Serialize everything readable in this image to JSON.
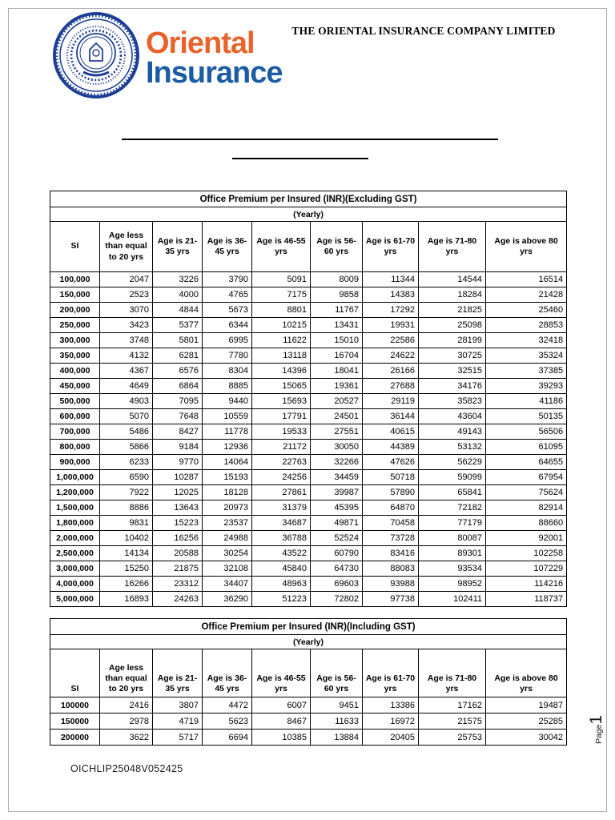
{
  "header": {
    "company_title": "THE ORIENTAL INSURANCE COMPANY LIMITED",
    "logo": {
      "line1": "Oriental",
      "line2": "Insurance",
      "orange": "#e8622a",
      "blue": "#1c5ca3",
      "emblem_blue": "#1e3f96",
      "emblem_name": "oriental-insurance-seal"
    }
  },
  "tables": [
    {
      "title": "Office Premium per Insured (INR)(Excluding GST)",
      "subtitle": "(Yearly)",
      "columns": [
        "SI",
        "Age less than equal to 20 yrs",
        "Age is 21-35 yrs",
        "Age is 36-45 yrs",
        "Age is 46-55 yrs",
        "Age is 56-60 yrs",
        "Age is 61-70 yrs",
        "Age is 71-80 yrs",
        "Age is above 80 yrs"
      ],
      "rows": [
        [
          "100,000",
          "2047",
          "3226",
          "3790",
          "5091",
          "8009",
          "11344",
          "14544",
          "16514"
        ],
        [
          "150,000",
          "2523",
          "4000",
          "4765",
          "7175",
          "9858",
          "14383",
          "18284",
          "21428"
        ],
        [
          "200,000",
          "3070",
          "4844",
          "5673",
          "8801",
          "11767",
          "17292",
          "21825",
          "25460"
        ],
        [
          "250,000",
          "3423",
          "5377",
          "6344",
          "10215",
          "13431",
          "19931",
          "25098",
          "28853"
        ],
        [
          "300,000",
          "3748",
          "5801",
          "6995",
          "11622",
          "15010",
          "22586",
          "28199",
          "32418"
        ],
        [
          "350,000",
          "4132",
          "6281",
          "7780",
          "13118",
          "16704",
          "24622",
          "30725",
          "35324"
        ],
        [
          "400,000",
          "4367",
          "6576",
          "8304",
          "14396",
          "18041",
          "26166",
          "32515",
          "37385"
        ],
        [
          "450,000",
          "4649",
          "6864",
          "8885",
          "15065",
          "19361",
          "27688",
          "34176",
          "39293"
        ],
        [
          "500,000",
          "4903",
          "7095",
          "9440",
          "15693",
          "20527",
          "29119",
          "35823",
          "41186"
        ],
        [
          "600,000",
          "5070",
          "7648",
          "10559",
          "17791",
          "24501",
          "36144",
          "43604",
          "50135"
        ],
        [
          "700,000",
          "5486",
          "8427",
          "11778",
          "19533",
          "27551",
          "40615",
          "49143",
          "56506"
        ],
        [
          "800,000",
          "5866",
          "9184",
          "12936",
          "21172",
          "30050",
          "44389",
          "53132",
          "61095"
        ],
        [
          "900,000",
          "6233",
          "9770",
          "14064",
          "22763",
          "32266",
          "47626",
          "56229",
          "64655"
        ],
        [
          "1,000,000",
          "6590",
          "10287",
          "15193",
          "24256",
          "34459",
          "50718",
          "59099",
          "67954"
        ],
        [
          "1,200,000",
          "7922",
          "12025",
          "18128",
          "27861",
          "39987",
          "57890",
          "65841",
          "75624"
        ],
        [
          "1,500,000",
          "8886",
          "13643",
          "20973",
          "31379",
          "45395",
          "64870",
          "72182",
          "82914"
        ],
        [
          "1,800,000",
          "9831",
          "15223",
          "23537",
          "34687",
          "49871",
          "70458",
          "77179",
          "88660"
        ],
        [
          "2,000,000",
          "10402",
          "16256",
          "24988",
          "36788",
          "52524",
          "73728",
          "80087",
          "92001"
        ],
        [
          "2,500,000",
          "14134",
          "20588",
          "30254",
          "43522",
          "60790",
          "83416",
          "89301",
          "102258"
        ],
        [
          "3,000,000",
          "15250",
          "21875",
          "32108",
          "45840",
          "64730",
          "88083",
          "93534",
          "107229"
        ],
        [
          "4,000,000",
          "16266",
          "23312",
          "34407",
          "48963",
          "69603",
          "93988",
          "98952",
          "114216"
        ],
        [
          "5,000,000",
          "16893",
          "24263",
          "36290",
          "51223",
          "72802",
          "97738",
          "102411",
          "118737"
        ]
      ]
    },
    {
      "title": "Office Premium per Insured (INR)(Including GST)",
      "subtitle": "(Yearly)",
      "columns": [
        "SI",
        "Age less than equal to 20 yrs",
        "Age is 21-35 yrs",
        "Age is 36-45 yrs",
        "Age is 46-55 yrs",
        "Age is 56-60 yrs",
        "Age is 61-70 yrs",
        "Age is 71-80 yrs",
        "Age is above 80 yrs"
      ],
      "rows": [
        [
          "100000",
          "2416",
          "3807",
          "4472",
          "6007",
          "9451",
          "13386",
          "17162",
          "19487"
        ],
        [
          "150000",
          "2978",
          "4719",
          "5623",
          "8467",
          "11633",
          "16972",
          "21575",
          "25285"
        ],
        [
          "200000",
          "3622",
          "5717",
          "6694",
          "10385",
          "13884",
          "20405",
          "25753",
          "30042"
        ]
      ]
    }
  ],
  "footer": {
    "code": "OICHLIP25048V052425",
    "page_word": "Page",
    "page_number": "1"
  }
}
